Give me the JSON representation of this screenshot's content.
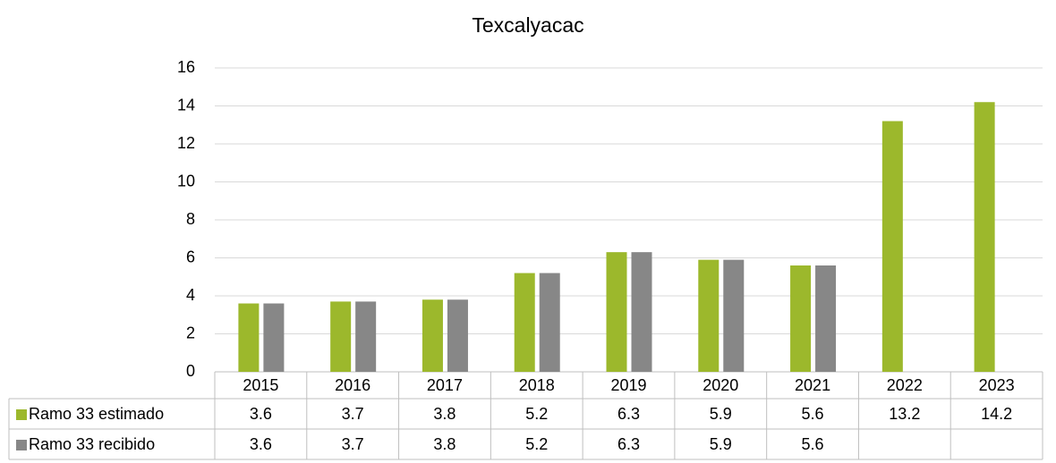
{
  "chart_data": {
    "type": "bar",
    "title": "Texcalyacac",
    "categories": [
      "2015",
      "2016",
      "2017",
      "2018",
      "2019",
      "2020",
      "2021",
      "2022",
      "2023"
    ],
    "series": [
      {
        "name": "Ramo 33 estimado",
        "color": "#9cb82c",
        "values": [
          3.6,
          3.7,
          3.8,
          5.2,
          6.3,
          5.9,
          5.6,
          13.2,
          14.2
        ]
      },
      {
        "name": "Ramo 33 recibido",
        "color": "#878787",
        "values": [
          3.6,
          3.7,
          3.8,
          5.2,
          6.3,
          5.9,
          5.6,
          null,
          null
        ]
      }
    ],
    "ylim": [
      0,
      16
    ],
    "yticks": [
      0,
      2,
      4,
      6,
      8,
      10,
      12,
      14,
      16
    ],
    "grid": true
  }
}
